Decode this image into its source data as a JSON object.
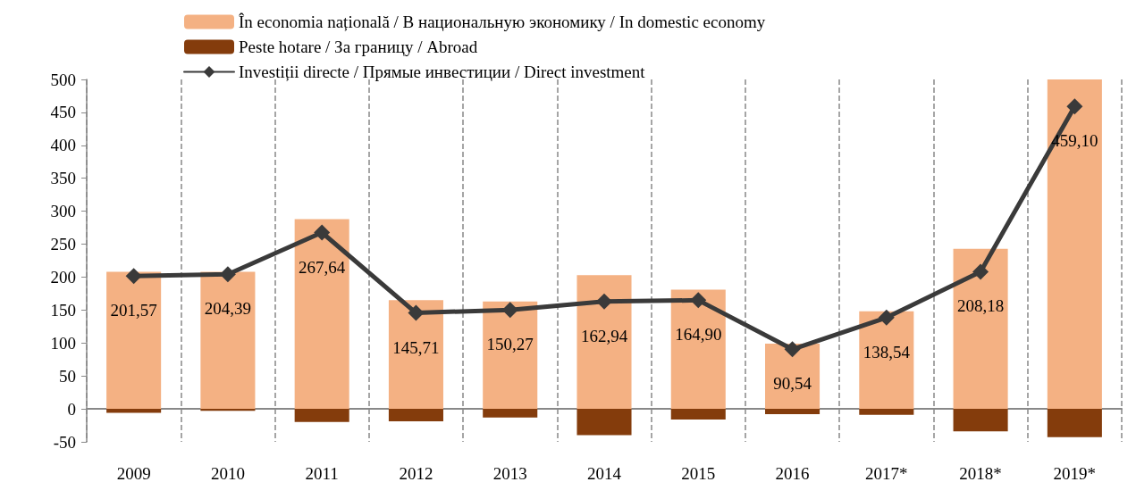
{
  "chart_data": {
    "type": "bar",
    "stacked": true,
    "categories": [
      "2009",
      "2010",
      "2011",
      "2012",
      "2013",
      "2014",
      "2015",
      "2016",
      "2017*",
      "2018*",
      "2019*"
    ],
    "series": [
      {
        "name": "În economia națională / В национальную экономику / In domestic economy",
        "color": "#f4b183",
        "values": [
          208,
          208,
          288,
          165,
          163,
          203,
          181,
          99,
          148,
          243,
          500
        ]
      },
      {
        "name": "Peste hotare / За границу / Abroad",
        "color": "#843c0c",
        "values": [
          -6,
          -3,
          -20,
          -19,
          -13,
          -40,
          -16,
          -8,
          -9,
          -34,
          -43
        ]
      },
      {
        "name": "Investiții directe / Прямые инвестиции / Direct investment",
        "type": "line",
        "color": "#3a3a3a",
        "marker": "diamond",
        "line_style": "solid",
        "values": [
          201.57,
          204.39,
          267.64,
          145.71,
          150.27,
          162.94,
          164.9,
          90.54,
          138.54,
          208.18,
          459.1
        ],
        "value_labels": [
          "201,57",
          "204,39",
          "267,64",
          "145,71",
          "150,27",
          "162,94",
          "164,90",
          "90,54",
          "138,54",
          "208,18",
          "459,10"
        ]
      }
    ],
    "ylim": [
      -50,
      500
    ],
    "yticks": [
      -50,
      0,
      50,
      100,
      150,
      200,
      250,
      300,
      350,
      400,
      450,
      500
    ],
    "grid": "x",
    "legend": "top"
  }
}
